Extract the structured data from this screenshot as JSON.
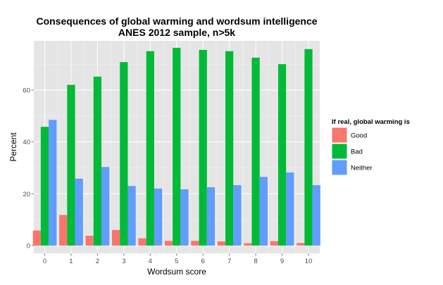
{
  "chart_data": {
    "type": "bar",
    "title_lines": [
      "Consequences of global warming and wordsum intelligence",
      "ANES 2012 sample, n>5k"
    ],
    "xlabel": "Wordsum score",
    "ylabel": "Percent",
    "categories": [
      "0",
      "1",
      "2",
      "3",
      "4",
      "5",
      "6",
      "7",
      "8",
      "9",
      "10"
    ],
    "yticks": [
      "0",
      "20",
      "40",
      "60"
    ],
    "ylim": [
      -3,
      79
    ],
    "grid": true,
    "legend_position": "right",
    "legend_title": "If real, global warming is",
    "series": [
      {
        "name": "Good",
        "color": "#F8766D",
        "values": [
          5.8,
          11.8,
          3.8,
          6.0,
          2.8,
          1.8,
          1.8,
          1.6,
          0.9,
          1.7,
          1.0
        ]
      },
      {
        "name": "Bad",
        "color": "#00BA38",
        "values": [
          45.8,
          62.0,
          65.2,
          70.8,
          75.0,
          76.3,
          75.5,
          75.0,
          72.5,
          70.0,
          75.8
        ]
      },
      {
        "name": "Neither",
        "color": "#619CFF",
        "values": [
          48.5,
          25.8,
          30.3,
          23.0,
          22.0,
          21.7,
          22.5,
          23.3,
          26.5,
          28.2,
          23.3
        ]
      }
    ],
    "panel_color": "#E5E5E5",
    "grid_color": "#FFFFFF"
  }
}
